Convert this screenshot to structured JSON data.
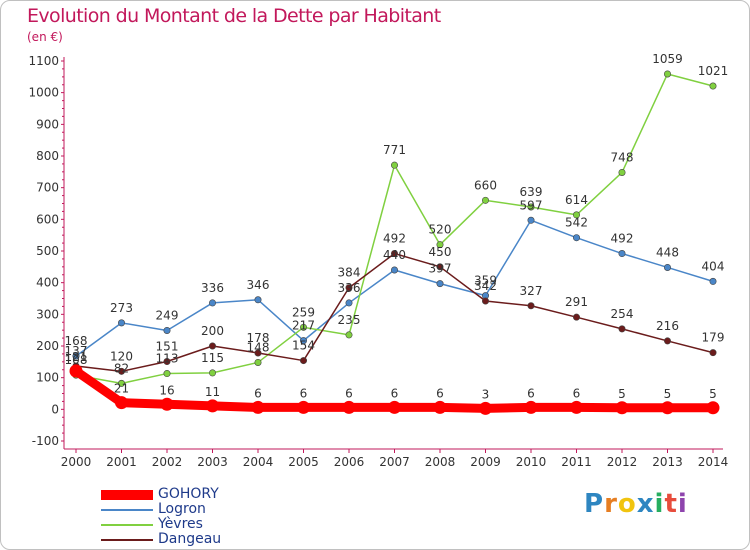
{
  "chart_data": {
    "type": "line",
    "title": "Evolution du Montant de la Dette par Habitant",
    "unit_label": "(en €)",
    "x": [
      "2000",
      "2001",
      "2002",
      "2003",
      "2004",
      "2005",
      "2006",
      "2007",
      "2008",
      "2009",
      "2010",
      "2011",
      "2012",
      "2013",
      "2014"
    ],
    "y_ticks": [
      "1100",
      "1000",
      "900",
      "800",
      "700",
      "600",
      "500",
      "400",
      "300",
      "200",
      "100",
      "0",
      "-100"
    ],
    "ylim": [
      -100,
      1100
    ],
    "grid": false,
    "legend_position": "bottom-left",
    "series": [
      {
        "name": "GOHORY",
        "color": "#ff0000",
        "values": [
          121,
          21,
          16,
          11,
          6,
          6,
          6,
          6,
          6,
          3,
          6,
          6,
          5,
          5,
          5
        ],
        "labels": [
          "121",
          "21",
          "16",
          "11",
          "6",
          "6",
          "6",
          "6",
          "6",
          "3",
          "6",
          "6",
          "5",
          "5",
          "5"
        ]
      },
      {
        "name": "Logron",
        "color": "#4a86c8",
        "values": [
          168,
          273,
          249,
          336,
          346,
          217,
          336,
          440,
          397,
          359,
          597,
          542,
          492,
          448,
          404
        ],
        "labels": [
          "168",
          "273",
          "249",
          "336",
          "346",
          "217",
          "336",
          "440",
          "397",
          "359",
          "597",
          "542",
          "492",
          "448",
          "404"
        ]
      },
      {
        "name": "Yèvres",
        "color": "#80d040",
        "values": [
          108,
          82,
          113,
          115,
          148,
          259,
          235,
          771,
          520,
          660,
          639,
          614,
          748,
          1059,
          1021
        ],
        "labels": [
          "108",
          "82",
          "113",
          "115",
          "148",
          "259",
          "235",
          "771",
          "520",
          "660",
          "639",
          "614",
          "748",
          "1059",
          "1021"
        ]
      },
      {
        "name": "Dangeau",
        "color": "#6b1c1c",
        "values": [
          137,
          120,
          151,
          200,
          178,
          154,
          384,
          492,
          450,
          342,
          327,
          291,
          254,
          216,
          179
        ],
        "labels": [
          "137",
          "120",
          "151",
          "200",
          "178",
          "154",
          "384",
          "492",
          "450",
          "342",
          "327",
          "291",
          "254",
          "216",
          "179"
        ]
      }
    ]
  },
  "logo": {
    "text": "Proxiti",
    "letter_colors": [
      "#2e86c1",
      "#e67e22",
      "#f1c40f",
      "#2e86c1",
      "#27ae60",
      "#e74c3c",
      "#8e44ad"
    ]
  }
}
